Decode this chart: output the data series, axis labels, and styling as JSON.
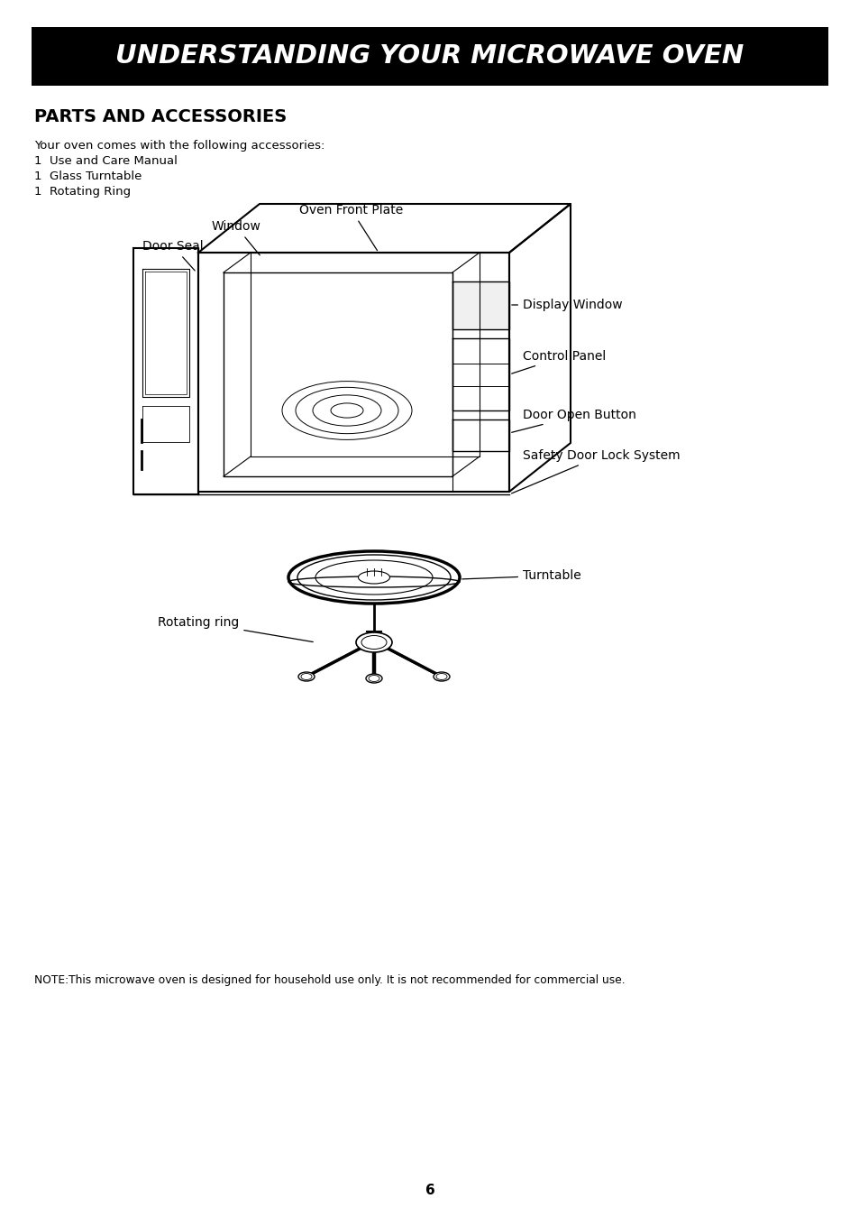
{
  "title": "UNDERSTANDING YOUR MICROWAVE OVEN",
  "title_bg": "#000000",
  "title_color": "#ffffff",
  "section_heading": "PARTS AND ACCESSORIES",
  "intro_text": "Your oven comes with the following accessories:",
  "accessories": [
    "1  Use and Care Manual",
    "1  Glass Turntable",
    "1  Rotating Ring"
  ],
  "note_text": "NOTE:This microwave oven is designed for household use only. It is not recommended for commercial use.",
  "page_number": "6",
  "bg_color": "#ffffff",
  "text_color": "#000000"
}
